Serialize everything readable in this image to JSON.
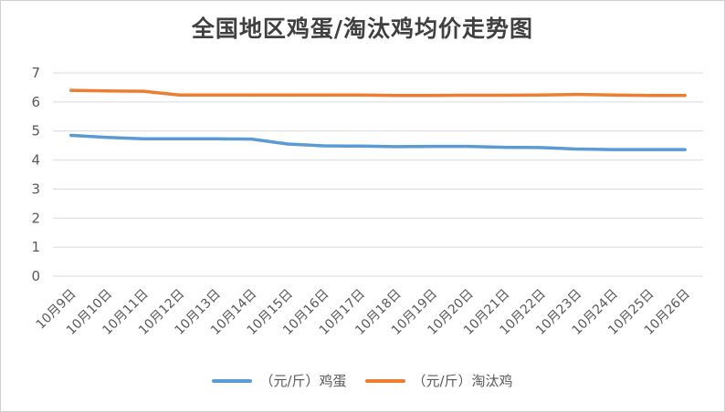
{
  "chart_data": {
    "type": "line",
    "title": "全国地区鸡蛋/淘汰鸡均价走势图",
    "xlabel": "",
    "ylabel": "",
    "ylim": [
      0,
      7
    ],
    "yticks": [
      "0",
      "1",
      "2",
      "3",
      "4",
      "5",
      "6",
      "7"
    ],
    "grid": true,
    "legend_position": "bottom",
    "categories": [
      "10月9日",
      "10月10日",
      "10月11日",
      "10月12日",
      "10月13日",
      "10月14日",
      "10月15日",
      "10月16日",
      "10月17日",
      "10月18日",
      "10月19日",
      "10月20日",
      "10月21日",
      "10月22日",
      "10月23日",
      "10月24日",
      "10月25日",
      "10月26日"
    ],
    "series": [
      {
        "name": "（元/斤）鸡蛋",
        "color": "#5b9bd5",
        "values": [
          4.85,
          4.78,
          4.73,
          4.73,
          4.73,
          4.72,
          4.55,
          4.49,
          4.48,
          4.46,
          4.47,
          4.47,
          4.44,
          4.43,
          4.38,
          4.36,
          4.36,
          4.36
        ]
      },
      {
        "name": "（元/斤）淘汰鸡",
        "color": "#ed7d31",
        "values": [
          6.4,
          6.38,
          6.37,
          6.24,
          6.24,
          6.24,
          6.24,
          6.24,
          6.24,
          6.22,
          6.22,
          6.23,
          6.23,
          6.24,
          6.26,
          6.24,
          6.22,
          6.22
        ]
      }
    ]
  }
}
